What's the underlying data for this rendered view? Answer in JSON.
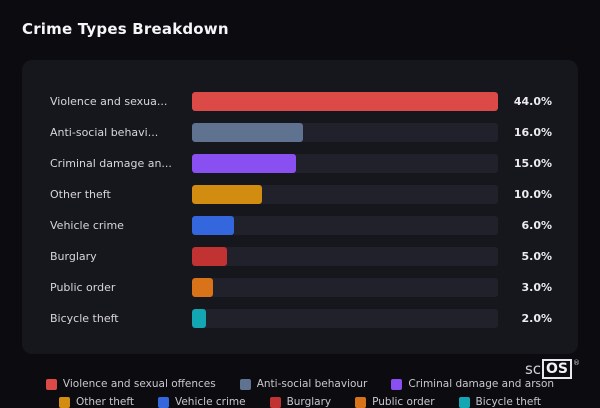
{
  "page": {
    "title": "Crime Types Breakdown"
  },
  "chart_data": {
    "type": "bar",
    "orientation": "horizontal",
    "title": "Crime Types Breakdown",
    "categories": [
      "Violence and sexua...",
      "Anti-social behavi...",
      "Criminal damage an...",
      "Other theft",
      "Vehicle crime",
      "Burglary",
      "Public order",
      "Bicycle theft"
    ],
    "values": [
      44.0,
      16.0,
      15.0,
      10.0,
      6.0,
      5.0,
      3.0,
      2.0
    ],
    "value_labels": [
      "44.0%",
      "16.0%",
      "15.0%",
      "10.0%",
      "6.0%",
      "5.0%",
      "3.0%",
      "2.0%"
    ],
    "bar_colors": [
      "#dc4a47",
      "#5f7390",
      "#8a4ff0",
      "#d28c10",
      "#3467dd",
      "#c13233",
      "#d9731a",
      "#12a7b2"
    ],
    "xlim": [
      0,
      44
    ],
    "grid": false,
    "legend_position": "bottom"
  },
  "legend": {
    "items": [
      "Violence and sexual offences",
      "Anti-social behaviour",
      "Criminal damage and arson",
      "Other theft",
      "Vehicle crime",
      "Burglary",
      "Public order",
      "Bicycle theft"
    ]
  },
  "colors": {
    "background": "#0b0b10",
    "panel": "#16161d",
    "track": "#21212b"
  },
  "branding": {
    "prefix": "sc",
    "boxed": "OS",
    "registered": "®"
  }
}
